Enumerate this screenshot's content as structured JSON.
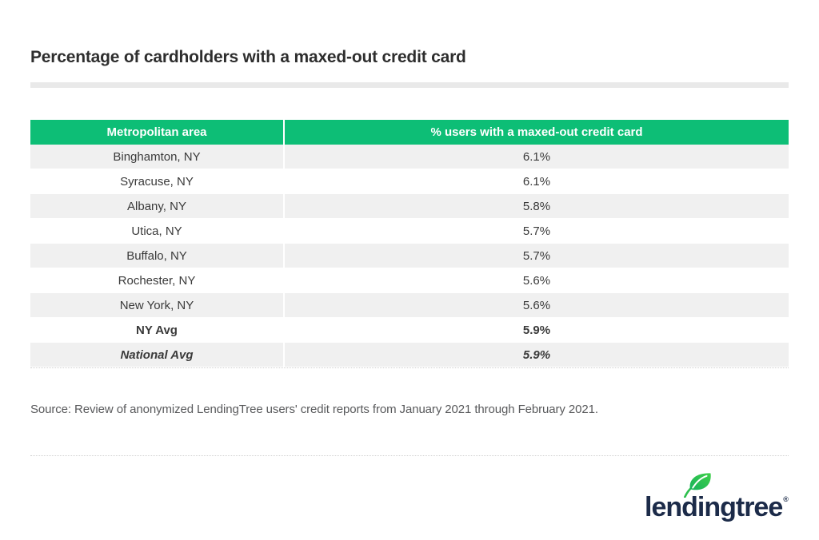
{
  "title": "Percentage of cardholders with a maxed-out credit card",
  "table": {
    "columns": [
      "Metropolitan area",
      "% users with a maxed-out credit card"
    ],
    "rows": [
      {
        "area": "Binghamton, NY",
        "value": "6.1%",
        "style": "normal"
      },
      {
        "area": "Syracuse, NY",
        "value": "6.1%",
        "style": "normal"
      },
      {
        "area": "Albany, NY",
        "value": "5.8%",
        "style": "normal"
      },
      {
        "area": "Utica, NY",
        "value": "5.7%",
        "style": "normal"
      },
      {
        "area": "Buffalo, NY",
        "value": "5.7%",
        "style": "normal"
      },
      {
        "area": "Rochester, NY",
        "value": "5.6%",
        "style": "normal"
      },
      {
        "area": "New York, NY",
        "value": "5.6%",
        "style": "normal"
      },
      {
        "area": "NY Avg",
        "value": "5.9%",
        "style": "bold"
      },
      {
        "area": "National Avg",
        "value": "5.9%",
        "style": "bold-italic"
      }
    ]
  },
  "source": "Source: Review of anonymized LendingTree users' credit reports from January 2021 through February 2021.",
  "logo": {
    "text": "lendingtree",
    "registered": "®"
  },
  "colors": {
    "header_green": "#0dbe76",
    "row_gray": "#f0f0f0",
    "logo_navy": "#1c2b49",
    "leaf_green": "#2ebf4e",
    "text_dark": "#3a3a3a",
    "source_gray": "#58595b",
    "divider_gray": "#e9e9e9"
  },
  "chart_data": {
    "type": "table",
    "title": "Percentage of cardholders with a maxed-out credit card",
    "columns": [
      "Metropolitan area",
      "% users with a maxed-out credit card"
    ],
    "categories": [
      "Binghamton, NY",
      "Syracuse, NY",
      "Albany, NY",
      "Utica, NY",
      "Buffalo, NY",
      "Rochester, NY",
      "New York, NY",
      "NY Avg",
      "National Avg"
    ],
    "values": [
      6.1,
      6.1,
      5.8,
      5.7,
      5.7,
      5.6,
      5.6,
      5.9,
      5.9
    ],
    "unit": "%",
    "source": "Source: Review of anonymized LendingTree users' credit reports from January 2021 through February 2021."
  }
}
